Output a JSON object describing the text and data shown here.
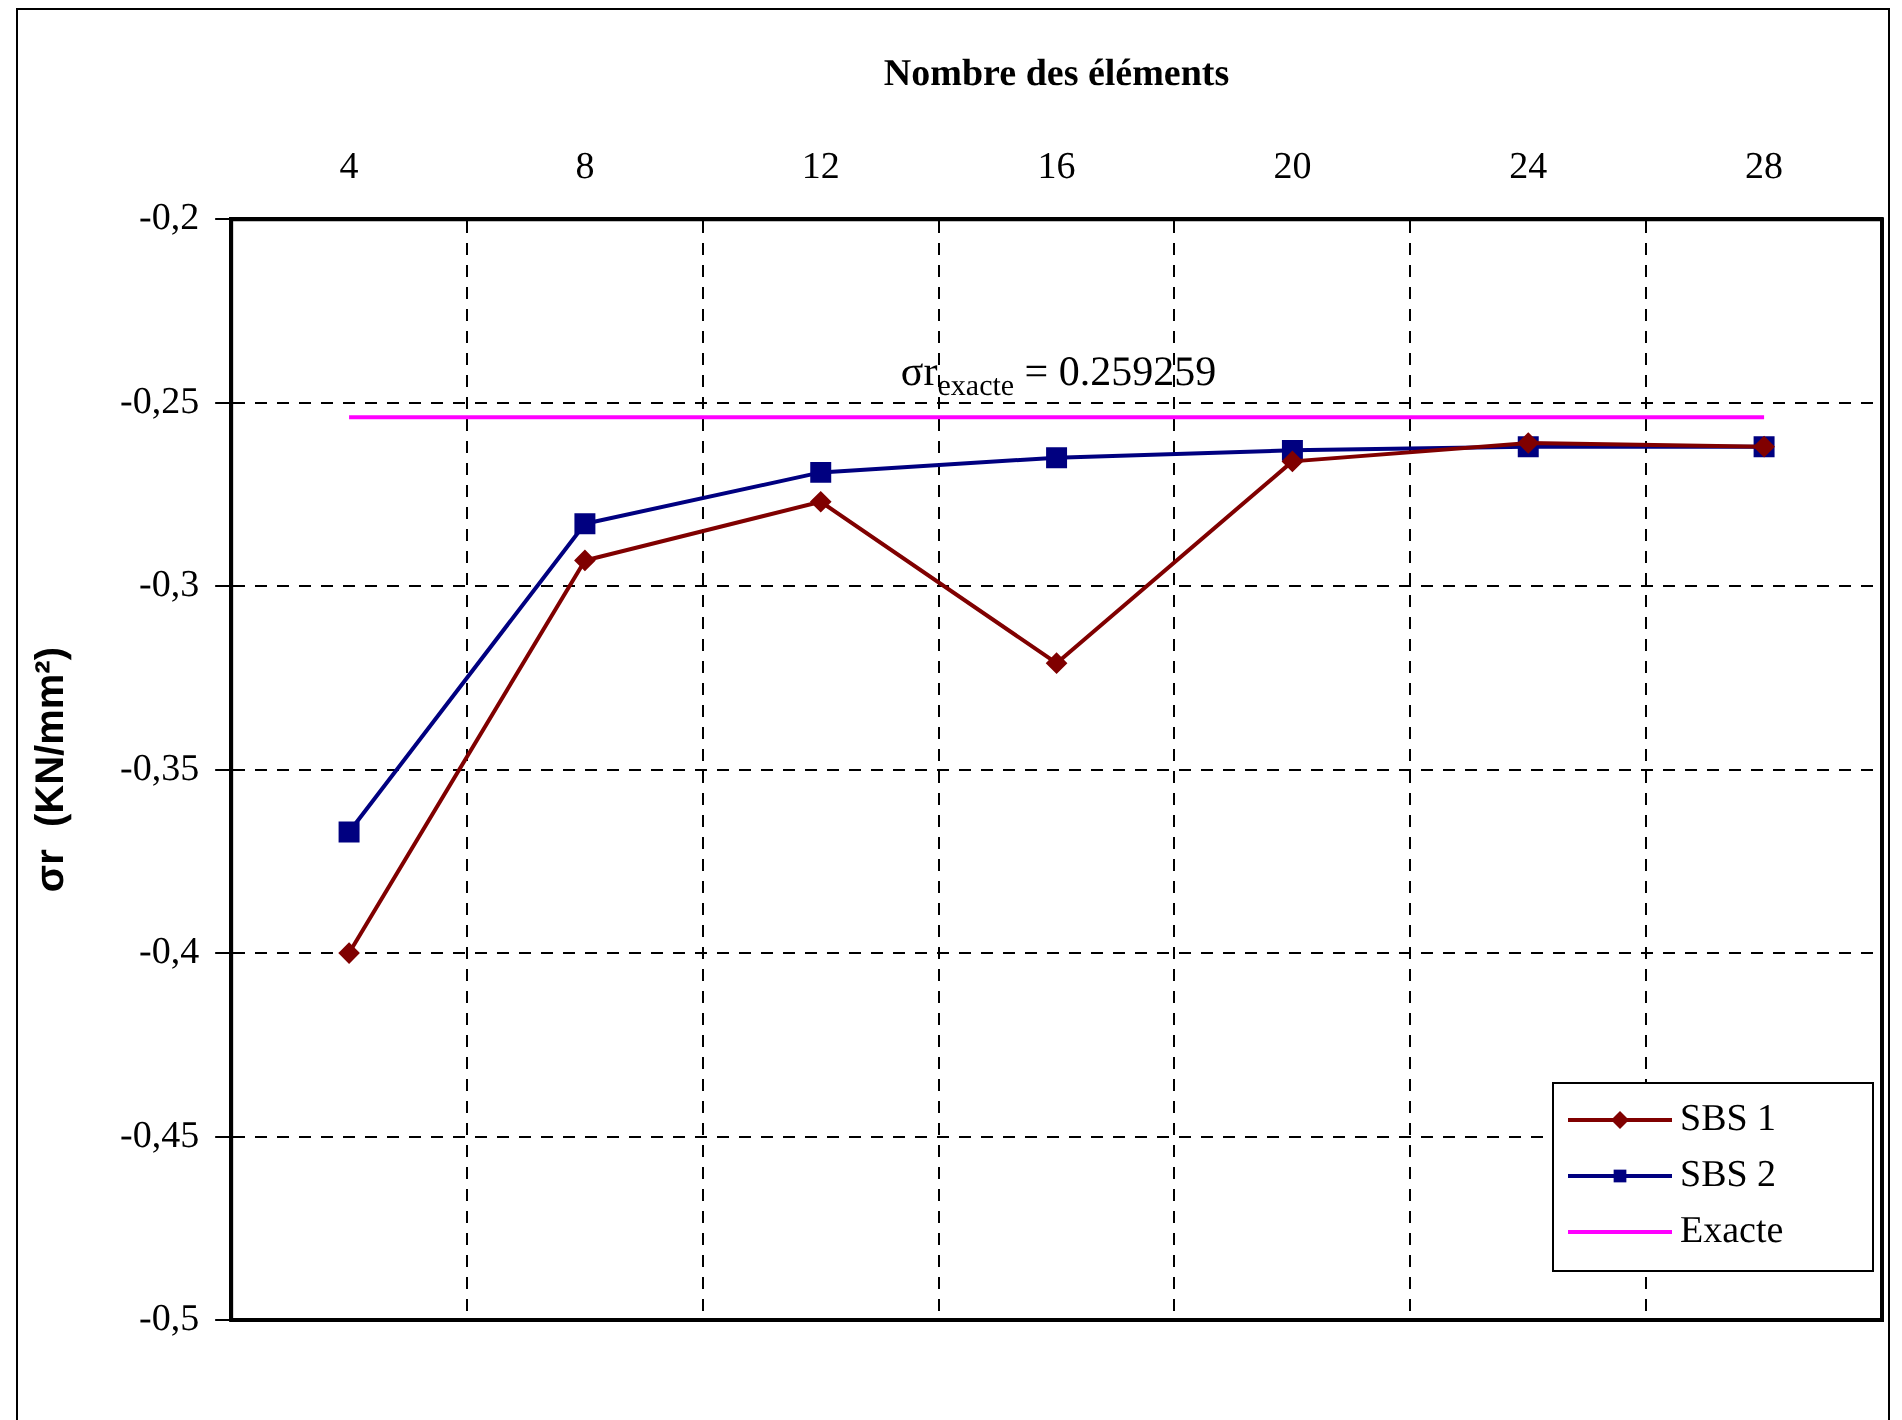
{
  "chart_data": {
    "type": "line",
    "xlabel": "Nombre des éléments",
    "ylabel": "σr  (KN/mm²)",
    "annotations": [
      "σr$_{exacte}$ = 0.259259"
    ],
    "categories": [
      "4",
      "8",
      "12",
      "16",
      "20",
      "24",
      "28"
    ],
    "series": [
      {
        "name": "SBS 1",
        "color": "#800000",
        "marker": "diamond",
        "values": [
          -0.4,
          -0.293,
          -0.277,
          -0.321,
          -0.266,
          -0.261,
          -0.262
        ]
      },
      {
        "name": "SBS 2",
        "color": "#000080",
        "marker": "square",
        "values": [
          -0.367,
          -0.283,
          -0.269,
          -0.265,
          -0.263,
          -0.262,
          -0.262
        ]
      },
      {
        "name": "Exacte",
        "color": "#ff00ff",
        "marker": "none",
        "values": [
          -0.254,
          -0.254,
          -0.254,
          -0.254,
          -0.254,
          -0.254,
          -0.254
        ]
      }
    ],
    "ylim": [
      -0.5,
      -0.2
    ],
    "yticks": [
      {
        "value": -0.2,
        "label": "-0,2"
      },
      {
        "value": -0.25,
        "label": "-0,25"
      },
      {
        "value": -0.3,
        "label": "-0,3"
      },
      {
        "value": -0.35,
        "label": "-0,35"
      },
      {
        "value": -0.4,
        "label": "-0,4"
      },
      {
        "value": -0.45,
        "label": "-0,45"
      },
      {
        "value": -0.5,
        "label": "-0,5"
      }
    ],
    "grid": true,
    "legend": "bottom right"
  }
}
